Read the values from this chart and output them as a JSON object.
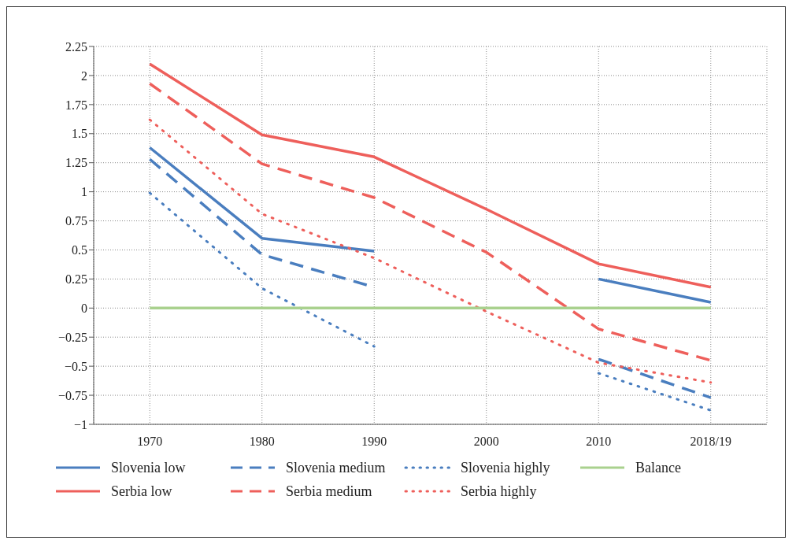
{
  "chart_data": {
    "type": "line",
    "categories": [
      "1970",
      "1980",
      "1990",
      "2000",
      "2010",
      "2018/19"
    ],
    "series": [
      {
        "name": "Slovenia low",
        "color": "#4a7ebf",
        "line_style": "solid",
        "values": [
          1.38,
          0.6,
          0.49,
          null,
          0.25,
          0.05
        ]
      },
      {
        "name": "Serbia low",
        "color": "#ee5f5b",
        "line_style": "solid",
        "values": [
          2.1,
          1.49,
          1.3,
          0.85,
          0.38,
          0.18
        ]
      },
      {
        "name": "Slovenia medium",
        "color": "#4a7ebf",
        "line_style": "dashed",
        "values": [
          1.28,
          0.46,
          0.18,
          null,
          -0.44,
          -0.77
        ]
      },
      {
        "name": "Serbia medium",
        "color": "#ee5f5b",
        "line_style": "dashed",
        "values": [
          1.93,
          1.24,
          0.95,
          0.48,
          -0.18,
          -0.45
        ]
      },
      {
        "name": "Slovenia highly",
        "color": "#4a7ebf",
        "line_style": "dotted",
        "values": [
          0.99,
          0.17,
          -0.33,
          null,
          -0.56,
          -0.88
        ]
      },
      {
        "name": "Serbia highly",
        "color": "#ee5f5b",
        "line_style": "dotted",
        "values": [
          1.62,
          0.81,
          0.43,
          -0.03,
          -0.47,
          -0.64
        ]
      },
      {
        "name": "Balance",
        "color": "#a9d18e",
        "line_style": "solid",
        "values": [
          0,
          0,
          0,
          0,
          0,
          0
        ]
      }
    ],
    "ylim": [
      -1,
      2.25
    ],
    "yticks": [
      {
        "value": -1,
        "label": "−1"
      },
      {
        "value": -0.75,
        "label": "−0.75"
      },
      {
        "value": -0.5,
        "label": "−0.5"
      },
      {
        "value": -0.25,
        "label": "−0.25"
      },
      0,
      0.25,
      0.5,
      0.75,
      1,
      1.25,
      1.5,
      1.75,
      2,
      2.25
    ],
    "grid": true,
    "legend": "bottom",
    "marker": "none"
  }
}
